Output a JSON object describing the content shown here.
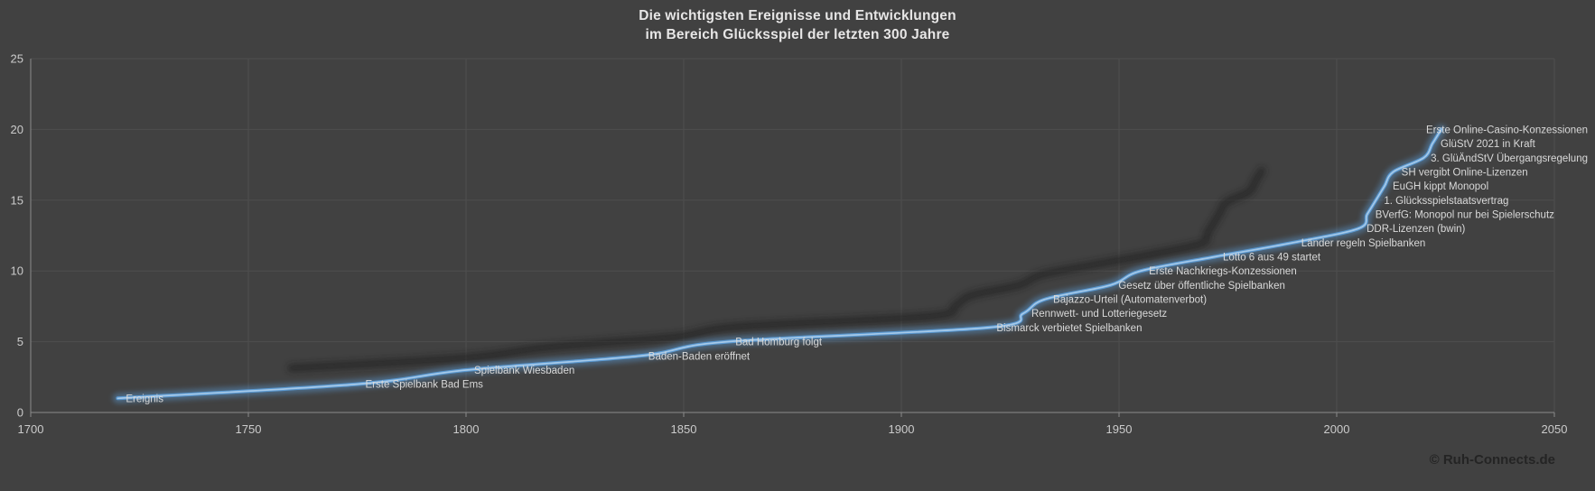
{
  "colors": {
    "background": "#414141",
    "gridline": "#4E4E4E",
    "axis_line": "#8A8A8A",
    "tick_label": "#CBCBCB",
    "title": "#E7E6E6",
    "event_label": "#D9D9D9",
    "line": "#5B9BD5",
    "line_core": "#A6C9E8",
    "shadow": "#1D1D1D",
    "copyright": "#242424"
  },
  "title": {
    "line1": "Die wichtigsten Ereignisse und Entwicklungen",
    "line2": "im Bereich Glücksspiel der letzten 300 Jahre"
  },
  "footer": {
    "copyright": "© Ruh-Connects.de"
  },
  "chart_data": {
    "type": "line",
    "smoothed": true,
    "series_name": "Ereignis",
    "title": "Die wichtigsten Ereignisse und Entwicklungen im Bereich Glücksspiel der letzten 300 Jahre",
    "xlabel": "",
    "ylabel": "",
    "xlim": [
      1700,
      2050
    ],
    "ylim": [
      0,
      25
    ],
    "x_ticks": [
      1700,
      1750,
      1800,
      1850,
      1900,
      1950,
      2000,
      2050
    ],
    "y_ticks": [
      0,
      5,
      10,
      15,
      20,
      25
    ],
    "grid": true,
    "legend": "none",
    "points": [
      {
        "year": 1720,
        "n": 1,
        "label": "Ereignis"
      },
      {
        "year": 1775,
        "n": 2,
        "label": "Erste Spielbank Bad Ems"
      },
      {
        "year": 1800,
        "n": 3,
        "label": "Spielbank Wiesbaden"
      },
      {
        "year": 1840,
        "n": 4,
        "label": "Baden-Baden eröffnet"
      },
      {
        "year": 1860,
        "n": 5,
        "label": "Bad Homburg folgt"
      },
      {
        "year": 1920,
        "n": 6,
        "label": "Bismarck verbietet Spielbanken"
      },
      {
        "year": 1928,
        "n": 7,
        "label": "Rennwett- und Lotteriegesetz"
      },
      {
        "year": 1933,
        "n": 8,
        "label": "Bajazzo-Urteil (Automatenverbot)"
      },
      {
        "year": 1948,
        "n": 9,
        "label": "Gesetz über öffentliche Spielbanken"
      },
      {
        "year": 1955,
        "n": 10,
        "label": "Erste Nachkriegs-Konzessionen"
      },
      {
        "year": 1972,
        "n": 11,
        "label": "Lotto 6 aus 49 startet"
      },
      {
        "year": 1990,
        "n": 12,
        "label": "Länder regeln Spielbanken"
      },
      {
        "year": 2005,
        "n": 13,
        "label": "DDR-Lizenzen (bwin)"
      },
      {
        "year": 2007,
        "n": 14,
        "label": "BVerfG: Monopol nur bei Spielerschutz"
      },
      {
        "year": 2009,
        "n": 15,
        "label": "1. Glücksspielstaatsvertrag"
      },
      {
        "year": 2011,
        "n": 16,
        "label": "EuGH kippt Monopol"
      },
      {
        "year": 2013,
        "n": 17,
        "label": "SH vergibt Online-Lizenzen"
      },
      {
        "year": 2020,
        "n": 18,
        "label": "3. GlüÄndStV Übergangsregelung"
      },
      {
        "year": 2022,
        "n": 19,
        "label": "GlüStV 2021 in Kraft"
      },
      {
        "year": 2024,
        "n": 20,
        "label": "Erste Online-Casino-Konzessionen"
      }
    ]
  }
}
